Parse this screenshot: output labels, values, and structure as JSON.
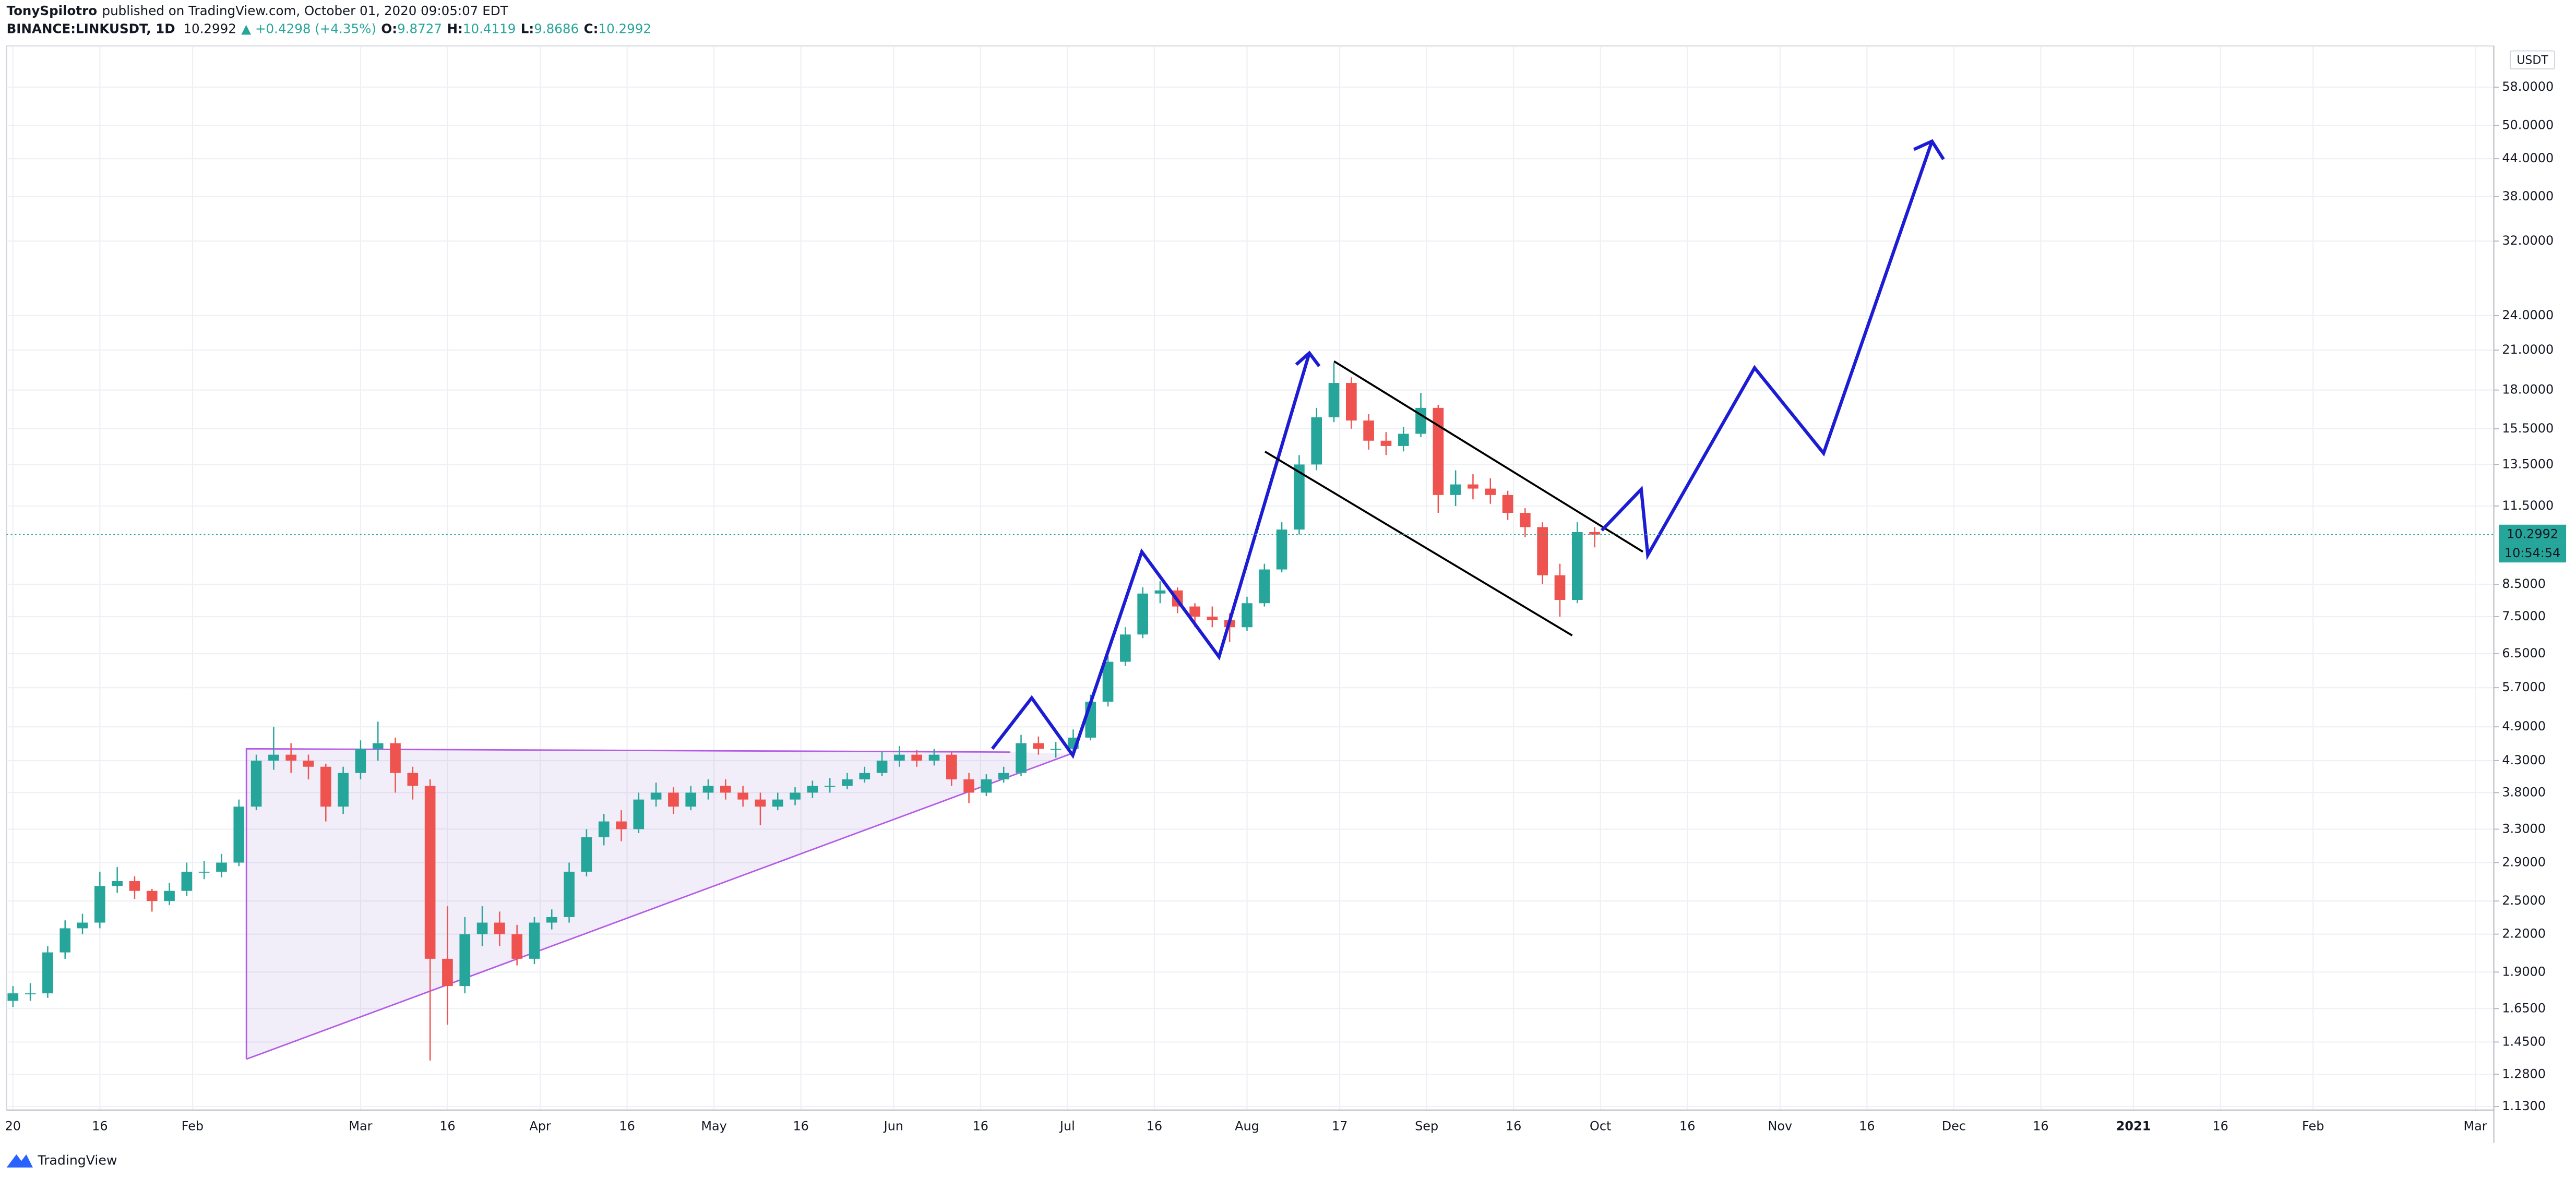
{
  "header": {
    "publisher": "TonySpilotro",
    "published": "published on TradingView.com, October 01, 2020 09:05:07 EDT",
    "symbol": "BINANCE:LINKUSDT, 1D",
    "last": "10.2992",
    "change": "▲ +0.4298 (+4.35%)",
    "open_label": "O:",
    "open": "9.8727",
    "high_label": "H:",
    "high": "10.4119",
    "low_label": "L:",
    "low": "9.8686",
    "close_label": "C:",
    "close": "10.2992"
  },
  "price_axis": {
    "currency": "USDT",
    "countdown": "10:54:54"
  },
  "footer": {
    "brand": "TradingView"
  },
  "chart_data": {
    "type": "candlestick",
    "log_scale": true,
    "grid": true,
    "up_color": "#26a69a",
    "down_color": "#ef5350",
    "xlim": [
      -1.1,
      428.2
    ],
    "ylim": [
      1.115,
      68
    ],
    "xticks": [
      {
        "value": 0,
        "label": "20"
      },
      {
        "value": 15,
        "label": "16"
      },
      {
        "value": 31,
        "label": "Feb"
      },
      {
        "value": 60,
        "label": "Mar"
      },
      {
        "value": 75,
        "label": "16"
      },
      {
        "value": 91,
        "label": "Apr"
      },
      {
        "value": 106,
        "label": "16"
      },
      {
        "value": 121,
        "label": "May"
      },
      {
        "value": 136,
        "label": "16"
      },
      {
        "value": 152,
        "label": "Jun"
      },
      {
        "value": 167,
        "label": "16"
      },
      {
        "value": 182,
        "label": "Jul"
      },
      {
        "value": 197,
        "label": "16"
      },
      {
        "value": 213,
        "label": "Aug"
      },
      {
        "value": 229,
        "label": "17"
      },
      {
        "value": 244,
        "label": "Sep"
      },
      {
        "value": 259,
        "label": "16"
      },
      {
        "value": 274,
        "label": "Oct"
      },
      {
        "value": 289,
        "label": "16"
      },
      {
        "value": 305,
        "label": "Nov"
      },
      {
        "value": 320,
        "label": "16"
      },
      {
        "value": 335,
        "label": "Dec"
      },
      {
        "value": 350,
        "label": "16"
      },
      {
        "value": 366,
        "label": "2021"
      },
      {
        "value": 381,
        "label": "16"
      },
      {
        "value": 397,
        "label": "Feb"
      },
      {
        "value": 425,
        "label": "Mar"
      }
    ],
    "yticks": [
      {
        "value": 58,
        "label": "58.0000"
      },
      {
        "value": 50,
        "label": "50.0000"
      },
      {
        "value": 44,
        "label": "44.0000"
      },
      {
        "value": 38,
        "label": "38.0000"
      },
      {
        "value": 32,
        "label": "32.0000"
      },
      {
        "value": 24,
        "label": "24.0000"
      },
      {
        "value": 21,
        "label": "21.0000"
      },
      {
        "value": 18,
        "label": "18.0000"
      },
      {
        "value": 15.5,
        "label": "15.5000"
      },
      {
        "value": 13.5,
        "label": "13.5000"
      },
      {
        "value": 11.5,
        "label": "11.5000"
      },
      {
        "value": 8.5,
        "label": "8.5000"
      },
      {
        "value": 7.5,
        "label": "7.5000"
      },
      {
        "value": 6.5,
        "label": "6.5000"
      },
      {
        "value": 5.7,
        "label": "5.7000"
      },
      {
        "value": 4.9,
        "label": "4.9000"
      },
      {
        "value": 4.3,
        "label": "4.3000"
      },
      {
        "value": 3.8,
        "label": "3.8000"
      },
      {
        "value": 3.3,
        "label": "3.3000"
      },
      {
        "value": 2.9,
        "label": "2.9000"
      },
      {
        "value": 2.5,
        "label": "2.5000"
      },
      {
        "value": 2.2,
        "label": "2.2000"
      },
      {
        "value": 1.9,
        "label": "1.9000"
      },
      {
        "value": 1.65,
        "label": "1.6500"
      },
      {
        "value": 1.45,
        "label": "1.4500"
      },
      {
        "value": 1.28,
        "label": "1.2800"
      },
      {
        "value": 1.13,
        "label": "1.1300"
      }
    ],
    "last_price": 10.2992,
    "x": [
      0,
      3,
      6,
      9,
      12,
      15,
      18,
      21,
      24,
      27,
      30,
      33,
      36,
      39,
      42,
      45,
      48,
      51,
      54,
      57,
      60,
      63,
      66,
      69,
      72,
      75,
      78,
      81,
      84,
      87,
      90,
      93,
      96,
      99,
      102,
      105,
      108,
      111,
      114,
      117,
      120,
      123,
      126,
      129,
      132,
      135,
      138,
      141,
      144,
      147,
      150,
      153,
      156,
      159,
      162,
      165,
      168,
      171,
      174,
      177,
      180,
      183,
      186,
      189,
      192,
      195,
      198,
      201,
      204,
      207,
      210,
      213,
      216,
      219,
      222,
      225,
      228,
      231,
      234,
      237,
      240,
      243,
      246,
      249,
      252,
      255,
      258,
      261,
      264,
      267,
      270,
      273
    ],
    "ohlc": [
      [
        1.7,
        1.8,
        1.66,
        1.75
      ],
      [
        1.75,
        1.82,
        1.7,
        1.75
      ],
      [
        1.75,
        2.1,
        1.72,
        2.05
      ],
      [
        2.05,
        2.32,
        2.0,
        2.25
      ],
      [
        2.25,
        2.38,
        2.2,
        2.3
      ],
      [
        2.3,
        2.8,
        2.25,
        2.65
      ],
      [
        2.65,
        2.85,
        2.58,
        2.7
      ],
      [
        2.7,
        2.75,
        2.52,
        2.6
      ],
      [
        2.6,
        2.62,
        2.4,
        2.5
      ],
      [
        2.5,
        2.68,
        2.46,
        2.6
      ],
      [
        2.6,
        2.9,
        2.55,
        2.8
      ],
      [
        2.8,
        2.92,
        2.72,
        2.8
      ],
      [
        2.8,
        3.0,
        2.74,
        2.9
      ],
      [
        2.9,
        3.7,
        2.86,
        3.6
      ],
      [
        3.6,
        4.4,
        3.55,
        4.3
      ],
      [
        4.3,
        4.9,
        4.15,
        4.4
      ],
      [
        4.4,
        4.6,
        4.1,
        4.3
      ],
      [
        4.3,
        4.4,
        4.0,
        4.2
      ],
      [
        4.2,
        4.25,
        3.4,
        3.6
      ],
      [
        3.6,
        4.2,
        3.5,
        4.1
      ],
      [
        4.1,
        4.65,
        4.0,
        4.5
      ],
      [
        4.5,
        5.0,
        4.3,
        4.6
      ],
      [
        4.6,
        4.7,
        3.8,
        4.1
      ],
      [
        4.1,
        4.2,
        3.7,
        3.9
      ],
      [
        3.9,
        4.0,
        1.35,
        2.0
      ],
      [
        2.0,
        2.45,
        1.55,
        1.8
      ],
      [
        1.8,
        2.35,
        1.75,
        2.2
      ],
      [
        2.2,
        2.45,
        2.1,
        2.3
      ],
      [
        2.3,
        2.4,
        2.1,
        2.2
      ],
      [
        2.2,
        2.28,
        1.95,
        2.0
      ],
      [
        2.0,
        2.35,
        1.96,
        2.3
      ],
      [
        2.3,
        2.42,
        2.24,
        2.35
      ],
      [
        2.35,
        2.9,
        2.3,
        2.8
      ],
      [
        2.8,
        3.3,
        2.75,
        3.2
      ],
      [
        3.2,
        3.5,
        3.1,
        3.4
      ],
      [
        3.4,
        3.55,
        3.15,
        3.3
      ],
      [
        3.3,
        3.8,
        3.25,
        3.7
      ],
      [
        3.7,
        3.95,
        3.6,
        3.8
      ],
      [
        3.8,
        3.88,
        3.5,
        3.6
      ],
      [
        3.6,
        3.9,
        3.55,
        3.8
      ],
      [
        3.8,
        4.0,
        3.7,
        3.9
      ],
      [
        3.9,
        4.0,
        3.7,
        3.8
      ],
      [
        3.8,
        3.9,
        3.6,
        3.7
      ],
      [
        3.7,
        3.8,
        3.35,
        3.6
      ],
      [
        3.6,
        3.8,
        3.55,
        3.7
      ],
      [
        3.7,
        3.88,
        3.62,
        3.8
      ],
      [
        3.8,
        3.98,
        3.72,
        3.9
      ],
      [
        3.9,
        4.02,
        3.8,
        3.9
      ],
      [
        3.9,
        4.1,
        3.85,
        4.0
      ],
      [
        4.0,
        4.2,
        3.95,
        4.1
      ],
      [
        4.1,
        4.45,
        4.05,
        4.3
      ],
      [
        4.3,
        4.55,
        4.2,
        4.4
      ],
      [
        4.4,
        4.48,
        4.2,
        4.3
      ],
      [
        4.3,
        4.5,
        4.22,
        4.4
      ],
      [
        4.4,
        4.45,
        3.9,
        4.0
      ],
      [
        4.0,
        4.1,
        3.65,
        3.8
      ],
      [
        3.8,
        4.08,
        3.75,
        4.0
      ],
      [
        4.0,
        4.2,
        3.95,
        4.1
      ],
      [
        4.1,
        4.75,
        4.05,
        4.6
      ],
      [
        4.6,
        4.72,
        4.4,
        4.5
      ],
      [
        4.5,
        4.62,
        4.35,
        4.5
      ],
      [
        4.5,
        4.85,
        4.42,
        4.7
      ],
      [
        4.7,
        5.55,
        4.65,
        5.4
      ],
      [
        5.4,
        6.45,
        5.3,
        6.3
      ],
      [
        6.3,
        7.2,
        6.2,
        7.0
      ],
      [
        7.0,
        8.4,
        6.9,
        8.2
      ],
      [
        8.2,
        8.6,
        7.9,
        8.3
      ],
      [
        8.3,
        8.4,
        7.6,
        7.8
      ],
      [
        7.8,
        7.9,
        7.2,
        7.5
      ],
      [
        7.5,
        7.8,
        7.2,
        7.4
      ],
      [
        7.4,
        7.6,
        6.8,
        7.2
      ],
      [
        7.2,
        8.1,
        7.1,
        7.9
      ],
      [
        7.9,
        9.2,
        7.8,
        9.0
      ],
      [
        9.0,
        10.8,
        8.9,
        10.5
      ],
      [
        10.5,
        14.0,
        10.3,
        13.5
      ],
      [
        13.5,
        16.8,
        13.2,
        16.2
      ],
      [
        16.2,
        20.0,
        15.9,
        18.5
      ],
      [
        18.5,
        18.9,
        15.5,
        16.0
      ],
      [
        16.0,
        16.4,
        14.3,
        14.8
      ],
      [
        14.8,
        15.3,
        14.0,
        14.5
      ],
      [
        14.5,
        15.6,
        14.2,
        15.2
      ],
      [
        15.2,
        17.8,
        15.0,
        16.8
      ],
      [
        16.8,
        17.0,
        11.2,
        12.0
      ],
      [
        12.0,
        13.2,
        11.5,
        12.5
      ],
      [
        12.5,
        13.0,
        11.8,
        12.3
      ],
      [
        12.3,
        12.8,
        11.6,
        12.0
      ],
      [
        12.0,
        12.2,
        10.9,
        11.2
      ],
      [
        11.2,
        11.4,
        10.2,
        10.6
      ],
      [
        10.6,
        10.8,
        8.5,
        8.8
      ],
      [
        8.8,
        9.2,
        7.5,
        8.0
      ],
      [
        8.0,
        10.8,
        7.9,
        10.4
      ],
      [
        10.4,
        10.6,
        9.8,
        10.2992
      ]
    ]
  }
}
